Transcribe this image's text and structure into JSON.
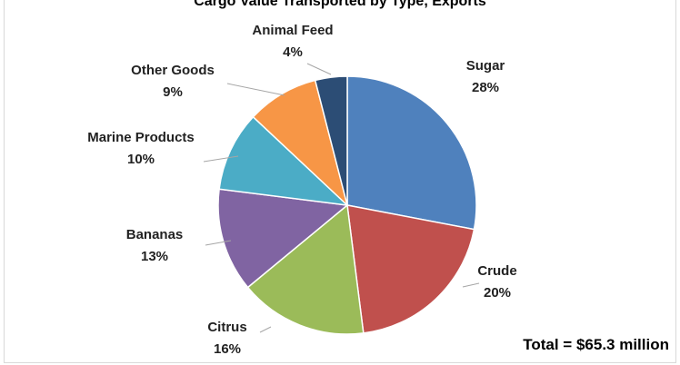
{
  "chart_data": {
    "type": "pie",
    "title": "Cargo Value Transported by Type, Exports",
    "categories": [
      "Sugar",
      "Crude",
      "Citrus",
      "Bananas",
      "Marine Products",
      "Other Goods",
      "Animal Feed"
    ],
    "values": [
      28,
      20,
      16,
      13,
      10,
      9,
      4
    ],
    "percent_labels": [
      "28%",
      "20%",
      "16%",
      "13%",
      "10%",
      "9%",
      "4%"
    ],
    "colors": [
      "#4f81bd",
      "#c0504d",
      "#9bbb59",
      "#8064a2",
      "#4bacc6",
      "#f79646",
      "#2c4d75"
    ],
    "start_angle_deg": 0,
    "direction": "clockwise",
    "annotation": "Total = $65.3 million",
    "legend": "none"
  }
}
